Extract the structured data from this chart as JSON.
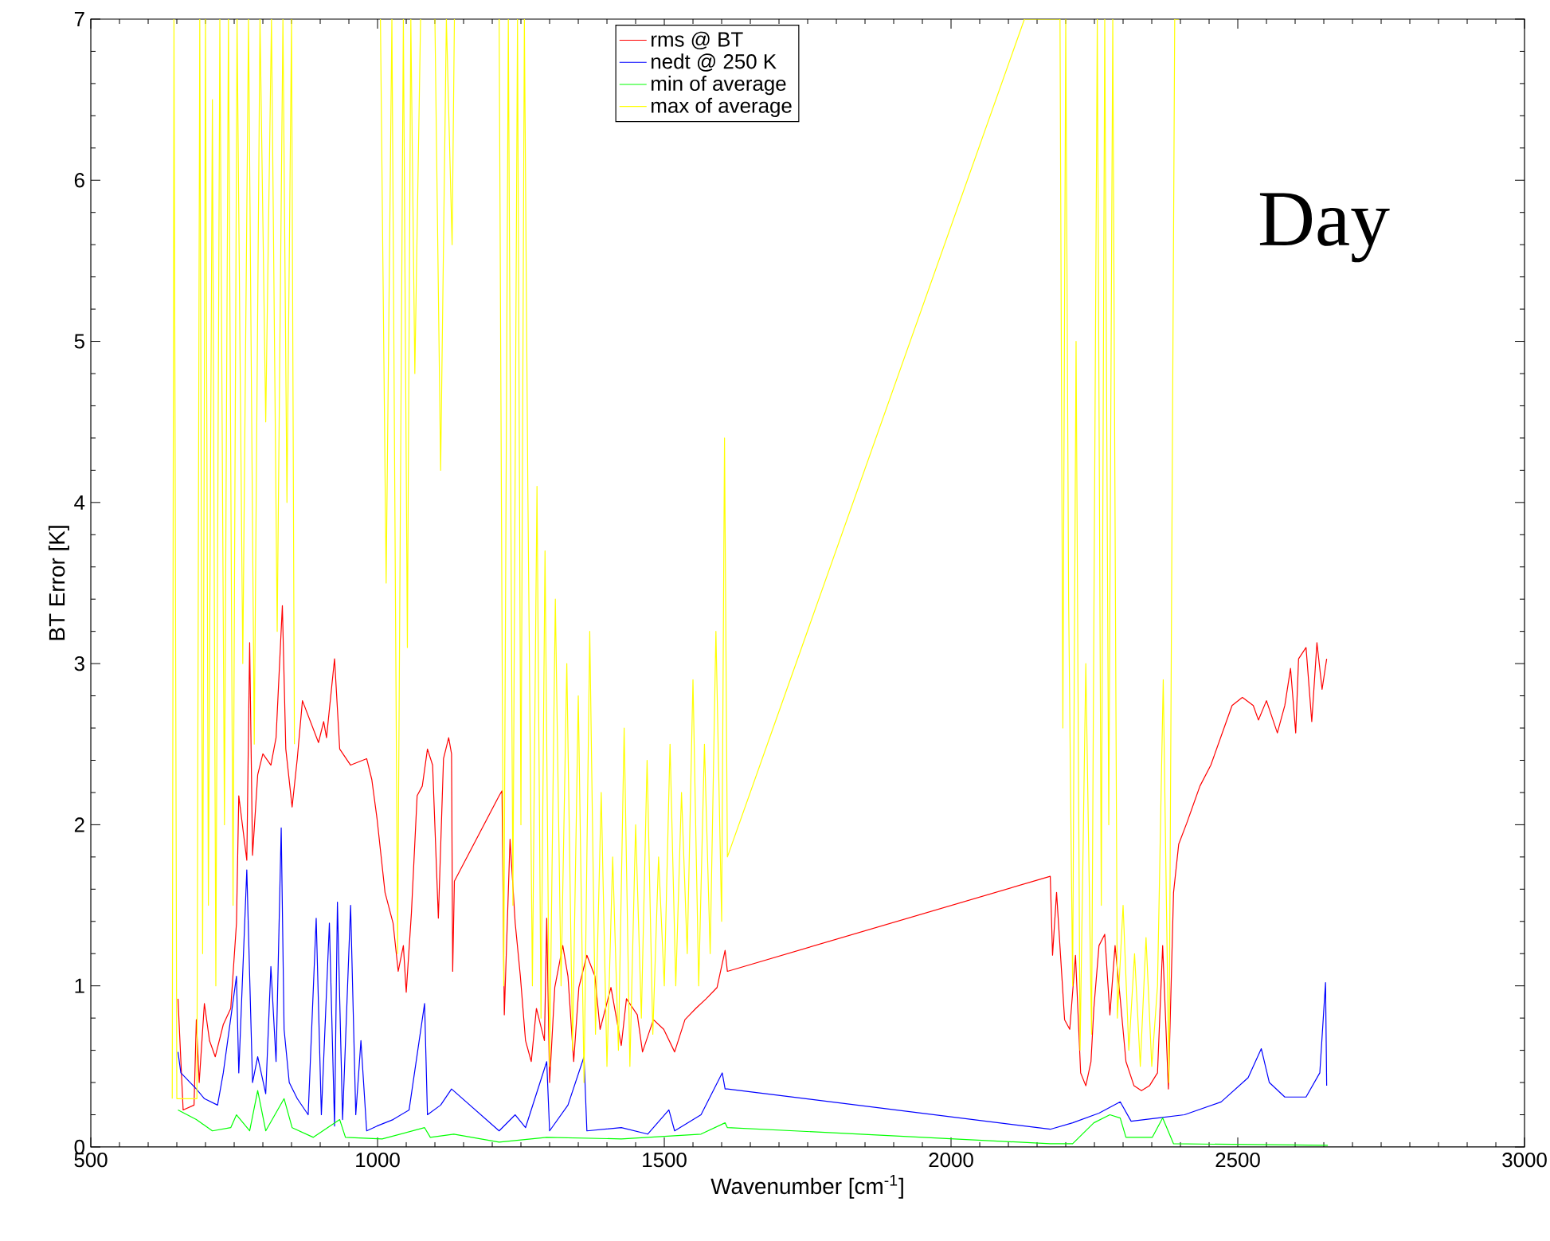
{
  "chart_data": {
    "type": "line",
    "xlabel": "Wavenumber [cm$^{-1}$]",
    "ylabel": "BT Error [K]",
    "xlim": [
      500,
      3000
    ],
    "ylim": [
      0,
      7
    ],
    "xticks": [
      500,
      1000,
      1500,
      2000,
      2500,
      3000
    ],
    "yticks": [
      0,
      1,
      2,
      3,
      4,
      5,
      6,
      7
    ],
    "legend": "top",
    "annotations": [
      "Day"
    ],
    "series": [
      {
        "name": "rms @ BT",
        "color": "#ff0000",
        "x": [
          652,
          661,
          680,
          684,
          689,
          698,
          707,
          717,
          731,
          744,
          754,
          758,
          772,
          777,
          782,
          791,
          800,
          814,
          823,
          834,
          840,
          851,
          860,
          869,
          897,
          906,
          911,
          925,
          934,
          953,
          981,
          990,
          999,
          1013,
          1027,
          1036,
          1045,
          1050,
          1059,
          1069,
          1078,
          1087,
          1096,
          1106,
          1115,
          1124,
          1129,
          1131,
          1134,
          1212,
          1217,
          1221,
          1231,
          1240,
          1249,
          1258,
          1268,
          1277,
          1291,
          1295,
          1300,
          1309,
          1323,
          1332,
          1342,
          1351,
          1365,
          1379,
          1388,
          1407,
          1425,
          1434,
          1453,
          1462,
          1481,
          1499,
          1518,
          1536,
          1555,
          1573,
          1592,
          1606,
          1610,
          2173,
          2177,
          2184,
          2198,
          2207,
          2217,
          2226,
          2235,
          2244,
          2249,
          2258,
          2268,
          2277,
          2286,
          2295,
          2305,
          2319,
          2332,
          2346,
          2360,
          2369,
          2379,
          2388,
          2397,
          2411,
          2434,
          2453,
          2476,
          2490,
          2508,
          2527,
          2536,
          2550,
          2569,
          2582,
          2592,
          2601,
          2606,
          2619,
          2629,
          2638,
          2647,
          2655
        ],
        "values": [
          0.92,
          0.23,
          0.26,
          0.79,
          0.4,
          0.89,
          0.66,
          0.56,
          0.76,
          0.86,
          1.39,
          2.18,
          1.78,
          3.13,
          1.81,
          2.31,
          2.44,
          2.37,
          2.54,
          3.36,
          2.47,
          2.11,
          2.41,
          2.77,
          2.51,
          2.64,
          2.54,
          3.03,
          2.47,
          2.37,
          2.41,
          2.28,
          2.04,
          1.58,
          1.39,
          1.09,
          1.25,
          0.96,
          1.45,
          2.18,
          2.24,
          2.47,
          2.37,
          1.42,
          2.41,
          2.54,
          2.44,
          1.09,
          1.65,
          2.18,
          2.21,
          0.82,
          1.91,
          1.39,
          1.06,
          0.66,
          0.53,
          0.86,
          0.66,
          1.42,
          0.4,
          0.99,
          1.25,
          1.06,
          0.53,
          0.99,
          1.19,
          1.06,
          0.73,
          0.99,
          0.63,
          0.92,
          0.82,
          0.59,
          0.79,
          0.73,
          0.59,
          0.79,
          0.86,
          0.92,
          0.99,
          1.22,
          1.09,
          1.68,
          1.19,
          1.58,
          0.79,
          0.73,
          1.19,
          0.46,
          0.38,
          0.53,
          0.86,
          1.25,
          1.32,
          0.82,
          1.25,
          0.92,
          0.53,
          0.38,
          0.35,
          0.38,
          0.46,
          1.25,
          0.36,
          1.58,
          1.88,
          2.01,
          2.24,
          2.37,
          2.6,
          2.74,
          2.79,
          2.74,
          2.65,
          2.77,
          2.57,
          2.74,
          2.97,
          2.57,
          3.03,
          3.1,
          2.64,
          3.13,
          2.84,
          3.03
        ]
      },
      {
        "name": "nedt @ 250 K",
        "color": "#0000ff",
        "x": [
          652,
          657,
          684,
          698,
          721,
          731,
          754,
          758,
          772,
          782,
          791,
          805,
          814,
          823,
          832,
          837,
          846,
          860,
          879,
          893,
          902,
          916,
          925,
          930,
          939,
          953,
          962,
          971,
          981,
          999,
          1027,
          1055,
          1082,
          1087,
          1110,
          1129,
          1212,
          1240,
          1258,
          1295,
          1300,
          1332,
          1360,
          1365,
          1425,
          1471,
          1508,
          1518,
          1564,
          1601,
          1606,
          1610,
          2173,
          2212,
          2258,
          2295,
          2314,
          2360,
          2407,
          2471,
          2518,
          2541,
          2555,
          2582,
          2619,
          2643,
          2653,
          2655
        ],
        "values": [
          0.59,
          0.46,
          0.36,
          0.3,
          0.26,
          0.46,
          1.06,
          0.46,
          1.72,
          0.4,
          0.56,
          0.33,
          1.12,
          0.53,
          1.98,
          0.73,
          0.4,
          0.3,
          0.2,
          1.42,
          0.2,
          1.39,
          0.13,
          1.52,
          0.17,
          1.5,
          0.2,
          0.66,
          0.1,
          0.13,
          0.17,
          0.23,
          0.89,
          0.2,
          0.26,
          0.36,
          0.1,
          0.2,
          0.12,
          0.53,
          0.1,
          0.26,
          0.56,
          0.1,
          0.12,
          0.08,
          0.23,
          0.1,
          0.2,
          0.46,
          0.36,
          0.36,
          0.11,
          0.15,
          0.21,
          0.28,
          0.16,
          0.18,
          0.2,
          0.28,
          0.43,
          0.61,
          0.4,
          0.31,
          0.31,
          0.46,
          1.02,
          0.38
        ]
      },
      {
        "name": "min of average",
        "color": "#00ff00",
        "x": [
          652,
          684,
          712,
          744,
          754,
          777,
          791,
          805,
          837,
          851,
          888,
          934,
          944,
          1008,
          1082,
          1092,
          1133,
          1212,
          1295,
          1425,
          1564,
          1606,
          1610,
          1842,
          2173,
          2212,
          2249,
          2277,
          2295,
          2305,
          2351,
          2369,
          2388,
          2657
        ],
        "values": [
          0.23,
          0.17,
          0.1,
          0.12,
          0.2,
          0.1,
          0.35,
          0.1,
          0.3,
          0.12,
          0.06,
          0.17,
          0.06,
          0.05,
          0.12,
          0.06,
          0.08,
          0.03,
          0.06,
          0.05,
          0.08,
          0.15,
          0.12,
          0.08,
          0.02,
          0.02,
          0.15,
          0.2,
          0.18,
          0.06,
          0.06,
          0.18,
          0.02,
          0.01
        ]
      },
      {
        "name": "max of average",
        "color": "#ffff00",
        "x": [
          642,
          645,
          650,
          685,
          690,
          695,
          700,
          705,
          712,
          718,
          725,
          733,
          740,
          748,
          755,
          765,
          775,
          785,
          795,
          805,
          815,
          825,
          835,
          842,
          850,
          855,
          870,
          1005,
          1015,
          1025,
          1035,
          1045,
          1052,
          1058,
          1065,
          1075,
          1092,
          1100,
          1110,
          1120,
          1130,
          1134,
          1170,
          1212,
          1220,
          1228,
          1236,
          1244,
          1250,
          1256,
          1262,
          1270,
          1278,
          1285,
          1292,
          1300,
          1310,
          1320,
          1330,
          1340,
          1350,
          1360,
          1370,
          1380,
          1390,
          1400,
          1410,
          1420,
          1430,
          1440,
          1450,
          1460,
          1470,
          1480,
          1490,
          1500,
          1510,
          1520,
          1530,
          1540,
          1550,
          1560,
          1570,
          1580,
          1590,
          1600,
          1605,
          1610,
          2128,
          2190,
          2195,
          2200,
          2205,
          2212,
          2218,
          2225,
          2235,
          2245,
          2255,
          2262,
          2268,
          2275,
          2282,
          2290,
          2300,
          2310,
          2320,
          2330,
          2340,
          2350,
          2360,
          2370,
          2380,
          2390,
          2397
        ],
        "values": [
          0.3,
          7,
          0.3,
          0.3,
          7,
          1.2,
          7,
          1.5,
          6.5,
          1.0,
          7,
          2.0,
          7,
          1.5,
          7,
          3.0,
          7,
          2.5,
          7,
          4.5,
          7,
          3.2,
          7,
          4.0,
          7,
          2.5,
          null,
          7,
          3.5,
          7,
          1.2,
          7,
          3.1,
          7,
          4.8,
          7,
          null,
          7,
          4.2,
          7,
          5.6,
          7,
          null,
          7,
          1.0,
          7,
          1.5,
          7,
          2.0,
          7,
          4.1,
          1.0,
          4.1,
          0.8,
          3.7,
          0.5,
          3.4,
          1.0,
          3.0,
          0.6,
          2.8,
          0.4,
          3.2,
          0.7,
          2.2,
          0.5,
          1.8,
          0.6,
          2.6,
          0.5,
          2.0,
          0.8,
          2.4,
          0.7,
          1.8,
          1.0,
          2.5,
          1.0,
          2.2,
          1.2,
          2.9,
          1.0,
          2.5,
          1.2,
          3.2,
          1.4,
          4.4,
          1.8,
          7,
          7,
          2.6,
          7,
          3.4,
          1.0,
          5.0,
          0.6,
          3.0,
          0.7,
          7,
          1.5,
          7,
          2.0,
          7,
          0.8,
          1.5,
          0.6,
          1.2,
          0.5,
          1.3,
          0.5,
          1.0,
          2.9,
          0.4,
          7,
          7
        ]
      }
    ]
  }
}
